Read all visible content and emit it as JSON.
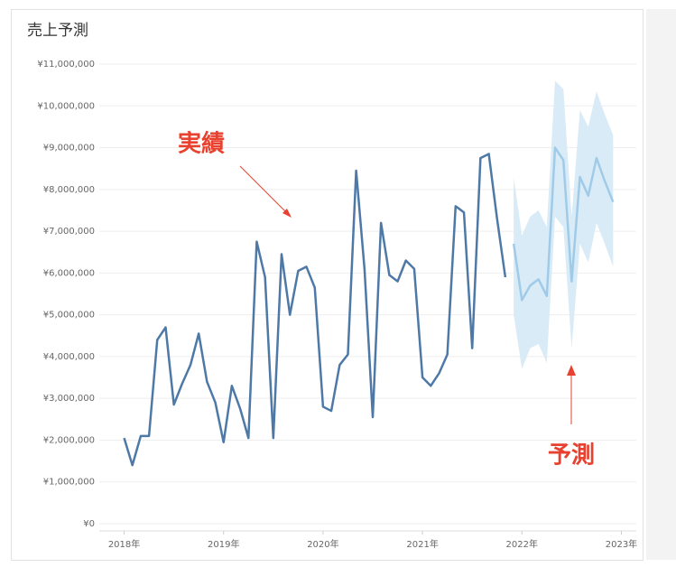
{
  "chart_data": {
    "type": "line",
    "title": "売上予測",
    "xlim": [
      2017.75,
      2023.15
    ],
    "xticks": [
      {
        "value": 2018,
        "label": "2018年"
      },
      {
        "value": 2019,
        "label": "2019年"
      },
      {
        "value": 2020,
        "label": "2020年"
      },
      {
        "value": 2021,
        "label": "2021年"
      },
      {
        "value": 2022,
        "label": "2022年"
      },
      {
        "value": 2023,
        "label": "2023年"
      }
    ],
    "ylim": [
      0,
      11000000
    ],
    "yticks": [
      {
        "value": 0,
        "label": "¥0"
      },
      {
        "value": 1000000,
        "label": "¥1,000,000"
      },
      {
        "value": 2000000,
        "label": "¥2,000,000"
      },
      {
        "value": 3000000,
        "label": "¥3,000,000"
      },
      {
        "value": 4000000,
        "label": "¥4,000,000"
      },
      {
        "value": 5000000,
        "label": "¥5,000,000"
      },
      {
        "value": 6000000,
        "label": "¥6,000,000"
      },
      {
        "value": 7000000,
        "label": "¥7,000,000"
      },
      {
        "value": 8000000,
        "label": "¥8,000,000"
      },
      {
        "value": 9000000,
        "label": "¥9,000,000"
      },
      {
        "value": 10000000,
        "label": "¥10,000,000"
      },
      {
        "value": 11000000,
        "label": "¥11,000,000"
      }
    ],
    "grid": true,
    "series": [
      {
        "name": "実績",
        "color": "#4e79a7",
        "x": [
          2018,
          2018.083,
          2018.167,
          2018.25,
          2018.333,
          2018.417,
          2018.5,
          2018.583,
          2018.667,
          2018.75,
          2018.833,
          2018.917,
          2019,
          2019.083,
          2019.167,
          2019.25,
          2019.333,
          2019.417,
          2019.5,
          2019.583,
          2019.667,
          2019.75,
          2019.833,
          2019.917,
          2020,
          2020.083,
          2020.167,
          2020.25,
          2020.333,
          2020.417,
          2020.5,
          2020.583,
          2020.667,
          2020.75,
          2020.833,
          2020.917,
          2021,
          2021.083,
          2021.167,
          2021.25,
          2021.333,
          2021.417,
          2021.5,
          2021.583,
          2021.667,
          2021.75,
          2021.833
        ],
        "values": [
          2050000,
          1400000,
          2100000,
          2100000,
          4400000,
          4700000,
          2850000,
          3350000,
          3800000,
          4550000,
          3400000,
          2900000,
          1950000,
          3300000,
          2750000,
          2050000,
          6750000,
          5900000,
          2050000,
          6450000,
          5000000,
          6050000,
          6150000,
          5650000,
          2800000,
          2700000,
          3800000,
          4050000,
          8450000,
          6100000,
          2550000,
          7200000,
          5950000,
          5800000,
          6300000,
          6100000,
          3500000,
          3300000,
          3600000,
          4050000,
          7600000,
          7450000,
          4200000,
          8750000,
          8850000,
          7300000,
          5900000
        ]
      },
      {
        "name": "予測",
        "color": "#a0cbe8",
        "band_color": "#d9ebf6",
        "x": [
          2021.917,
          2022,
          2022.083,
          2022.167,
          2022.25,
          2022.333,
          2022.417,
          2022.5,
          2022.583,
          2022.667,
          2022.75,
          2022.833,
          2022.917
        ],
        "values": [
          6700000,
          5350000,
          5700000,
          5850000,
          5450000,
          9000000,
          8700000,
          5800000,
          8300000,
          7850000,
          8750000,
          8200000,
          7700000
        ],
        "upper": [
          8300000,
          6900000,
          7350000,
          7500000,
          7100000,
          10600000,
          10400000,
          7350000,
          9900000,
          9500000,
          10350000,
          9800000,
          9300000
        ],
        "lower": [
          5000000,
          3700000,
          4200000,
          4300000,
          3850000,
          7350000,
          7100000,
          4200000,
          6700000,
          6250000,
          7200000,
          6700000,
          6150000
        ]
      }
    ]
  }
}
